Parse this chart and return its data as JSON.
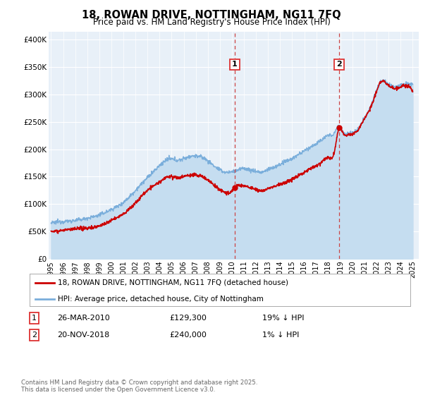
{
  "title": "18, ROWAN DRIVE, NOTTINGHAM, NG11 7FQ",
  "subtitle": "Price paid vs. HM Land Registry's House Price Index (HPI)",
  "ylabel_ticks": [
    "£0",
    "£50K",
    "£100K",
    "£150K",
    "£200K",
    "£250K",
    "£300K",
    "£350K",
    "£400K"
  ],
  "ytick_values": [
    0,
    50000,
    100000,
    150000,
    200000,
    250000,
    300000,
    350000,
    400000
  ],
  "ylim": [
    0,
    415000
  ],
  "xlim_start": 1994.8,
  "xlim_end": 2025.5,
  "transaction1": {
    "date_num": 2010.23,
    "price": 129300,
    "label": "1",
    "hpi_pct": "19% ↓ HPI",
    "date_str": "26-MAR-2010"
  },
  "transaction2": {
    "date_num": 2018.9,
    "price": 240000,
    "label": "2",
    "hpi_pct": "1% ↓ HPI",
    "date_str": "20-NOV-2018"
  },
  "legend1_label": "18, ROWAN DRIVE, NOTTINGHAM, NG11 7FQ (detached house)",
  "legend2_label": "HPI: Average price, detached house, City of Nottingham",
  "footer": "Contains HM Land Registry data © Crown copyright and database right 2025.\nThis data is licensed under the Open Government Licence v3.0.",
  "table_row1": [
    "1",
    "26-MAR-2010",
    "£129,300",
    "19% ↓ HPI"
  ],
  "table_row2": [
    "2",
    "20-NOV-2018",
    "£240,000",
    "1% ↓ HPI"
  ],
  "color_red": "#cc0000",
  "color_blue": "#7aaedb",
  "color_blue_fill": "#c5ddf0",
  "bg_color": "#e8f0f8",
  "dashed_color": "#cc4444",
  "grid_color": "#ffffff",
  "label_box_color": "#dd3333"
}
